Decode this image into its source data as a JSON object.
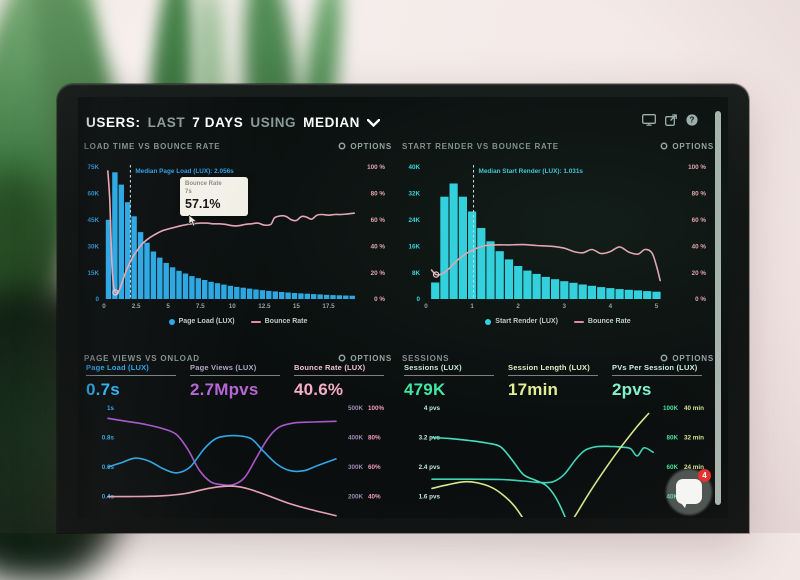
{
  "header": {
    "t1": "USERS:",
    "t2": "LAST",
    "t3": "7 DAYS",
    "t4": "USING",
    "t5": "MEDIAN",
    "icons": [
      "display-icon",
      "export-icon",
      "help-icon"
    ]
  },
  "chat": {
    "badge": "4"
  },
  "accent_colors": {
    "blue": "#2ba7e3",
    "cyan": "#30d4e4",
    "pink": "#eba6b6",
    "purple": "#a957cc",
    "green": "#3fe8a4",
    "yellow_green": "#d7e88c",
    "mint": "#84f4cc"
  },
  "chart_data": [
    {
      "id": "load-time-vs-bounce-rate",
      "type": "bar",
      "title": "LOAD TIME VS BOUNCE RATE",
      "options_label": "OPTIONS",
      "colors": {
        "bar": "#2ba7e3",
        "line": "#eba6b6",
        "left": "#2f9fe6",
        "right": "#eda4b6",
        "median": "#2f9fe6"
      },
      "y_left": {
        "labels": [
          "75K",
          "60K",
          "45K",
          "30K",
          "15K",
          "0"
        ],
        "max_k": 75
      },
      "y_right": {
        "labels": [
          "100 %",
          "80 %",
          "60 %",
          "40 %",
          "20 %",
          "0 %"
        ]
      },
      "x_max": 19.8,
      "bar_x0": 0.35,
      "bar_step": 0.5,
      "bars": [
        45,
        72,
        65,
        55,
        47,
        38,
        32,
        27,
        23.5,
        20.5,
        18,
        16,
        14.5,
        13,
        11.8,
        10.8,
        9.8,
        9,
        8.2,
        7.5,
        6.9,
        6.4,
        5.9,
        5.4,
        5,
        4.6,
        4.3,
        4,
        3.7,
        3.4,
        3.2,
        3,
        2.8,
        2.6,
        2.4,
        2.2,
        2.1,
        2,
        1.9
      ],
      "x_ticks": [
        [
          0,
          "0"
        ],
        [
          2.5,
          "2.5"
        ],
        [
          5,
          "5"
        ],
        [
          7.5,
          "7.5"
        ],
        [
          10,
          "10"
        ],
        [
          12.5,
          "12.5"
        ],
        [
          15,
          "15"
        ],
        [
          17.5,
          "17.5"
        ]
      ],
      "median": {
        "x": 2.056,
        "label": "Median Page Load (LUX): 2.056s"
      },
      "line_points": [
        [
          0.3,
          97
        ],
        [
          0.45,
          75
        ],
        [
          0.6,
          30
        ],
        [
          0.75,
          10
        ],
        [
          0.9,
          5
        ],
        [
          1.05,
          5
        ],
        [
          1.2,
          7
        ],
        [
          1.5,
          15
        ],
        [
          1.8,
          23
        ],
        [
          2.2,
          31
        ],
        [
          2.6,
          37
        ],
        [
          3,
          42
        ],
        [
          3.5,
          46
        ],
        [
          4,
          49
        ],
        [
          4.5,
          51.5
        ],
        [
          5,
          53
        ],
        [
          6,
          55.5
        ],
        [
          6.5,
          56.5
        ],
        [
          7,
          57.1
        ],
        [
          7.5,
          57.5
        ],
        [
          8,
          57.5
        ],
        [
          8.5,
          57
        ],
        [
          9,
          57
        ],
        [
          9.5,
          56.5
        ],
        [
          10,
          55.5
        ],
        [
          10.5,
          55.5
        ],
        [
          11,
          56.5
        ],
        [
          11.5,
          57
        ],
        [
          12,
          57.5
        ],
        [
          12.5,
          56
        ],
        [
          13,
          56.5
        ],
        [
          13.3,
          61.5
        ],
        [
          13.8,
          63
        ],
        [
          14.2,
          62.5
        ],
        [
          14.6,
          60
        ],
        [
          15,
          59.5
        ],
        [
          15.4,
          62.5
        ],
        [
          15.8,
          62
        ],
        [
          16.2,
          60.5
        ],
        [
          16.6,
          63.5
        ],
        [
          17,
          64
        ],
        [
          17.5,
          63.5
        ],
        [
          18,
          64
        ],
        [
          18.5,
          64
        ],
        [
          19,
          64.5
        ],
        [
          19.5,
          65
        ]
      ],
      "markers": [
        [
          0.9,
          5
        ]
      ],
      "tooltip": {
        "title": "Bounce Rate",
        "sub": "7s",
        "value": "57.1%",
        "x": 7,
        "y": 57.1
      },
      "legend": [
        {
          "swatch": "dot",
          "color": "#2ba7e3",
          "label": "Page Load (LUX)"
        },
        {
          "swatch": "line",
          "color": "#e98aa0",
          "label": "Bounce Rate"
        }
      ]
    },
    {
      "id": "start-render-vs-bounce-rate",
      "type": "bar",
      "title": "START RENDER VS BOUNCE RATE",
      "options_label": "OPTIONS",
      "colors": {
        "bar": "#30d4e4",
        "line": "#eba6b6",
        "left": "#35d6e4",
        "right": "#eda4b6",
        "median": "#3fc8dc"
      },
      "y_left": {
        "labels": [
          "40K",
          "32K",
          "24K",
          "16K",
          "8K",
          "0"
        ],
        "max_k": 40
      },
      "y_right": {
        "labels": [
          "100 %",
          "80 %",
          "60 %",
          "40 %",
          "20 %",
          "0 %"
        ]
      },
      "x_max": 5.25,
      "bar_x0": 0.2,
      "bar_step": 0.2,
      "bars": [
        5,
        31,
        35,
        31,
        26.5,
        21.5,
        17.5,
        14.5,
        12,
        10,
        8.6,
        7.6,
        6.7,
        6,
        5.4,
        4.9,
        4.4,
        4,
        3.6,
        3.3,
        3,
        2.8,
        2.6,
        2.4,
        2.2
      ],
      "x_ticks": [
        [
          0,
          "0"
        ],
        [
          1,
          "1"
        ],
        [
          2,
          "2"
        ],
        [
          3,
          "3"
        ],
        [
          4,
          "4"
        ],
        [
          5,
          "5"
        ]
      ],
      "median": {
        "x": 1.031,
        "label": "Median Start Render (LUX): 1.031s"
      },
      "line_points": [
        [
          0.12,
          22
        ],
        [
          0.22,
          18.5
        ],
        [
          0.35,
          19
        ],
        [
          0.5,
          23
        ],
        [
          0.7,
          30
        ],
        [
          0.9,
          35
        ],
        [
          1.1,
          38.5
        ],
        [
          1.3,
          40.5
        ],
        [
          1.5,
          41
        ],
        [
          1.8,
          41
        ],
        [
          2.1,
          41.2
        ],
        [
          2.4,
          40.5
        ],
        [
          2.7,
          40
        ],
        [
          3,
          38.5
        ],
        [
          3.2,
          36
        ],
        [
          3.4,
          35
        ],
        [
          3.6,
          37.5
        ],
        [
          3.8,
          34.5
        ],
        [
          4,
          36
        ],
        [
          4.2,
          39.5
        ],
        [
          4.4,
          35.5
        ],
        [
          4.6,
          34
        ],
        [
          4.75,
          37.5
        ],
        [
          4.9,
          35
        ],
        [
          5,
          25
        ],
        [
          5.08,
          14
        ]
      ],
      "markers": [
        [
          0.22,
          18.5
        ]
      ],
      "legend": [
        {
          "swatch": "dot",
          "color": "#30d4e4",
          "label": "Start Render (LUX)"
        },
        {
          "swatch": "line",
          "color": "#e98aa0",
          "label": "Bounce Rate"
        }
      ]
    },
    {
      "id": "page-views-vs-onload",
      "type": "line",
      "title": "PAGE VIEWS VS ONLOAD",
      "options_label": "OPTIONS",
      "metrics": [
        {
          "label": "Page Load (LUX)",
          "value": "0.7s",
          "label_color": "#2aa4e6",
          "value_color": "#2eb2f2"
        },
        {
          "label": "Page Views (LUX)",
          "value": "2.7Mpvs",
          "label_color": "#b3a6c6",
          "value_color": "#b765d6"
        },
        {
          "label": "Bounce Rate (LUX)",
          "value": "40.6%",
          "label_color": "#f3c3d2",
          "value_color": "#f6aec4"
        }
      ],
      "colors": {
        "left": "#2fa6e8",
        "k": "#9d8bb0",
        "p": "#ef9db6"
      },
      "rows": [
        [
          "1s",
          "500K",
          "100%"
        ],
        [
          "0.8s",
          "400K",
          "80%"
        ],
        [
          "0.6s",
          "300K",
          "60%"
        ],
        [
          "0.4s",
          "200K",
          "40%"
        ]
      ],
      "scales": {
        "s": {
          "top": 1,
          "step": 0.2
        },
        "pct": {
          "top": 100,
          "step": 20
        }
      },
      "series": [
        {
          "name": "Page Views",
          "scale": "pct",
          "color": "#a957cc",
          "pts": [
            [
              0,
              93
            ],
            [
              8,
              91
            ],
            [
              16,
              89
            ],
            [
              24,
              86
            ],
            [
              30,
              82
            ],
            [
              35,
              72
            ],
            [
              40,
              58
            ],
            [
              45,
              50
            ],
            [
              50,
              48
            ],
            [
              55,
              48
            ],
            [
              60,
              53
            ],
            [
              65,
              66
            ],
            [
              70,
              79
            ],
            [
              75,
              87
            ],
            [
              82,
              90
            ],
            [
              90,
              90.5
            ],
            [
              100,
              91
            ]
          ]
        },
        {
          "name": "Page Load",
          "scale": "s",
          "color": "#2fa8e8",
          "pts": [
            [
              0,
              0.6
            ],
            [
              6,
              0.63
            ],
            [
              12,
              0.66
            ],
            [
              18,
              0.64
            ],
            [
              24,
              0.59
            ],
            [
              30,
              0.56
            ],
            [
              36,
              0.6
            ],
            [
              42,
              0.72
            ],
            [
              47,
              0.79
            ],
            [
              52,
              0.81
            ],
            [
              58,
              0.81
            ],
            [
              63,
              0.79
            ],
            [
              68,
              0.71
            ],
            [
              74,
              0.62
            ],
            [
              80,
              0.575
            ],
            [
              86,
              0.575
            ],
            [
              92,
              0.61
            ],
            [
              100,
              0.655
            ]
          ]
        },
        {
          "name": "Bounce Rate",
          "scale": "pct",
          "color": "#eaa4b8",
          "pts": [
            [
              0,
              40
            ],
            [
              12,
              40
            ],
            [
              24,
              40.5
            ],
            [
              34,
              42
            ],
            [
              44,
              45.5
            ],
            [
              52,
              47
            ],
            [
              58,
              46.5
            ],
            [
              64,
              44
            ],
            [
              72,
              39.5
            ],
            [
              80,
              35
            ],
            [
              88,
              31.5
            ],
            [
              100,
              27
            ]
          ]
        }
      ]
    },
    {
      "id": "sessions",
      "type": "line",
      "title": "SESSIONS",
      "options_label": "OPTIONS",
      "metrics": [
        {
          "label": "Sessions (LUX)",
          "value": "479K",
          "label_color": "#c9ead8",
          "value_color": "#3fe8a4"
        },
        {
          "label": "Session Length (LUX)",
          "value": "17min",
          "label_color": "#e9efc6",
          "value_color": "#e2f096"
        },
        {
          "label": "PVs Per Session (LUX)",
          "value": "2pvs",
          "label_color": "#cdf2e2",
          "value_color": "#84f4cc"
        }
      ],
      "colors": {
        "left": "#c3e9d6",
        "k": "#43e3a1",
        "p": "#d3e794"
      },
      "rows": [
        [
          "4 pvs",
          "100K",
          "40 min"
        ],
        [
          "3.2 pvs",
          "80K",
          "32 min"
        ],
        [
          "2.4 pvs",
          "60K",
          "24 min"
        ],
        [
          "1.6 pvs",
          "40K",
          ""
        ]
      ],
      "scales": {
        "pvs": {
          "top": 4,
          "step": 0.8
        }
      },
      "series": [
        {
          "name": "Sessions",
          "scale": "pvs",
          "color": "#46dcc0",
          "pts": [
            [
              0,
              3.2
            ],
            [
              8,
              3.17
            ],
            [
              16,
              3.12
            ],
            [
              24,
              3.05
            ],
            [
              30,
              2.95
            ],
            [
              35,
              2.6
            ],
            [
              40,
              2.2
            ],
            [
              45,
              2.05
            ],
            [
              50,
              1.9
            ],
            [
              54,
              1.6
            ],
            [
              58,
              1.1
            ],
            [
              61,
              0.6
            ]
          ]
        },
        {
          "name": "PVs Per Session",
          "scale": "pvs",
          "color": "#3ed4b8",
          "pts": [
            [
              0,
              2.07
            ],
            [
              15,
              2.07
            ],
            [
              30,
              2.06
            ],
            [
              40,
              2.02
            ],
            [
              47,
              1.98
            ],
            [
              53,
              2.0
            ],
            [
              58,
              2.2
            ],
            [
              63,
              2.6
            ],
            [
              67,
              2.85
            ],
            [
              72,
              2.95
            ],
            [
              78,
              2.96
            ],
            [
              83,
              2.94
            ],
            [
              87,
              2.9
            ],
            [
              90,
              2.7
            ],
            [
              93,
              2.92
            ],
            [
              97,
              2.8
            ]
          ]
        },
        {
          "name": "Session Length",
          "scale": "pvs",
          "color": "#d7e88c",
          "pts": [
            [
              0,
              1.82
            ],
            [
              7,
              1.92
            ],
            [
              14,
              2.0
            ],
            [
              20,
              1.97
            ],
            [
              26,
              1.85
            ],
            [
              31,
              1.65
            ],
            [
              36,
              1.35
            ],
            [
              40,
              1.0
            ],
            [
              44,
              0.6
            ]
          ]
        },
        {
          "name": "Session Length rise",
          "scale": "pvs",
          "color": "#d7e88c",
          "pts": [
            [
              55,
              0.4
            ],
            [
              62,
              1.0
            ],
            [
              69,
              1.7
            ],
            [
              76,
              2.35
            ],
            [
              83,
              2.95
            ],
            [
              90,
              3.5
            ],
            [
              95,
              3.85
            ]
          ]
        }
      ]
    }
  ]
}
